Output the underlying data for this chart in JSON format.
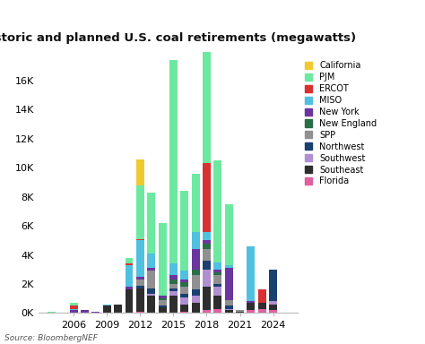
{
  "title": "Historic and planned U.S. coal retirements (megawatts)",
  "source": "Source: BloombergNEF",
  "years": [
    2004,
    2005,
    2006,
    2007,
    2008,
    2009,
    2010,
    2011,
    2012,
    2013,
    2014,
    2015,
    2016,
    2017,
    2018,
    2019,
    2020,
    2021,
    2022,
    2023,
    2024,
    2025
  ],
  "categories": [
    "Florida",
    "Southeast",
    "Southwest",
    "Northwest",
    "SPP",
    "New England",
    "New York",
    "MISO",
    "ERCOT",
    "PJM",
    "California"
  ],
  "colors": {
    "California": "#f0c930",
    "PJM": "#6de8a0",
    "ERCOT": "#d93030",
    "MISO": "#50c0e0",
    "New York": "#6b35a0",
    "New England": "#2a6e48",
    "SPP": "#909090",
    "Northwest": "#1a4070",
    "Southwest": "#b090d0",
    "Southeast": "#2e2e2e",
    "Florida": "#e060a0"
  },
  "data": {
    "California": [
      0,
      0,
      0,
      0,
      0,
      0,
      0,
      0,
      1800,
      0,
      0,
      0,
      0,
      0,
      0,
      0,
      0,
      0,
      0,
      0,
      0,
      0
    ],
    "PJM": [
      100,
      0,
      200,
      0,
      0,
      0,
      0,
      400,
      3700,
      4200,
      5000,
      14000,
      5500,
      4000,
      7700,
      7000,
      4200,
      0,
      0,
      0,
      0,
      0
    ],
    "ERCOT": [
      0,
      0,
      200,
      0,
      0,
      0,
      0,
      100,
      100,
      0,
      0,
      0,
      0,
      0,
      4700,
      0,
      0,
      0,
      0,
      900,
      0,
      0
    ],
    "MISO": [
      0,
      0,
      100,
      0,
      0,
      100,
      0,
      1500,
      2500,
      1000,
      0,
      800,
      600,
      1200,
      600,
      500,
      200,
      0,
      3800,
      0,
      0,
      0
    ],
    "New York": [
      0,
      0,
      200,
      200,
      100,
      0,
      0,
      200,
      200,
      200,
      200,
      300,
      200,
      1400,
      200,
      200,
      2200,
      0,
      100,
      0,
      0,
      0
    ],
    "New England": [
      0,
      0,
      0,
      0,
      0,
      0,
      0,
      0,
      0,
      0,
      100,
      300,
      300,
      400,
      400,
      200,
      0,
      0,
      0,
      0,
      0,
      0
    ],
    "SPP": [
      0,
      0,
      0,
      0,
      0,
      0,
      0,
      0,
      400,
      1200,
      400,
      300,
      500,
      1000,
      800,
      600,
      400,
      100,
      0,
      0,
      0,
      0
    ],
    "Northwest": [
      0,
      0,
      0,
      0,
      0,
      0,
      0,
      0,
      200,
      400,
      100,
      200,
      200,
      400,
      600,
      200,
      200,
      0,
      0,
      0,
      2200,
      0
    ],
    "Southwest": [
      0,
      0,
      0,
      0,
      0,
      0,
      0,
      0,
      0,
      100,
      0,
      300,
      500,
      500,
      1200,
      600,
      100,
      0,
      0,
      0,
      200,
      0
    ],
    "Southeast": [
      0,
      0,
      0,
      0,
      0,
      500,
      600,
      1600,
      1600,
      1200,
      400,
      1200,
      500,
      700,
      1600,
      900,
      200,
      100,
      500,
      400,
      400,
      0
    ],
    "Florida": [
      0,
      0,
      0,
      0,
      0,
      0,
      0,
      0,
      100,
      0,
      0,
      0,
      100,
      0,
      200,
      300,
      0,
      0,
      200,
      300,
      200,
      0
    ]
  },
  "ylim": [
    0,
    18000
  ],
  "yticks": [
    0,
    2000,
    4000,
    6000,
    8000,
    10000,
    12000,
    14000,
    16000
  ],
  "ytick_labels": [
    "0K",
    "2K",
    "4K",
    "6K",
    "8K",
    "10K",
    "12K",
    "14K",
    "16K"
  ],
  "xtick_positions": [
    2006,
    2009,
    2012,
    2015,
    2018,
    2021,
    2024
  ],
  "background_color": "#ffffff"
}
